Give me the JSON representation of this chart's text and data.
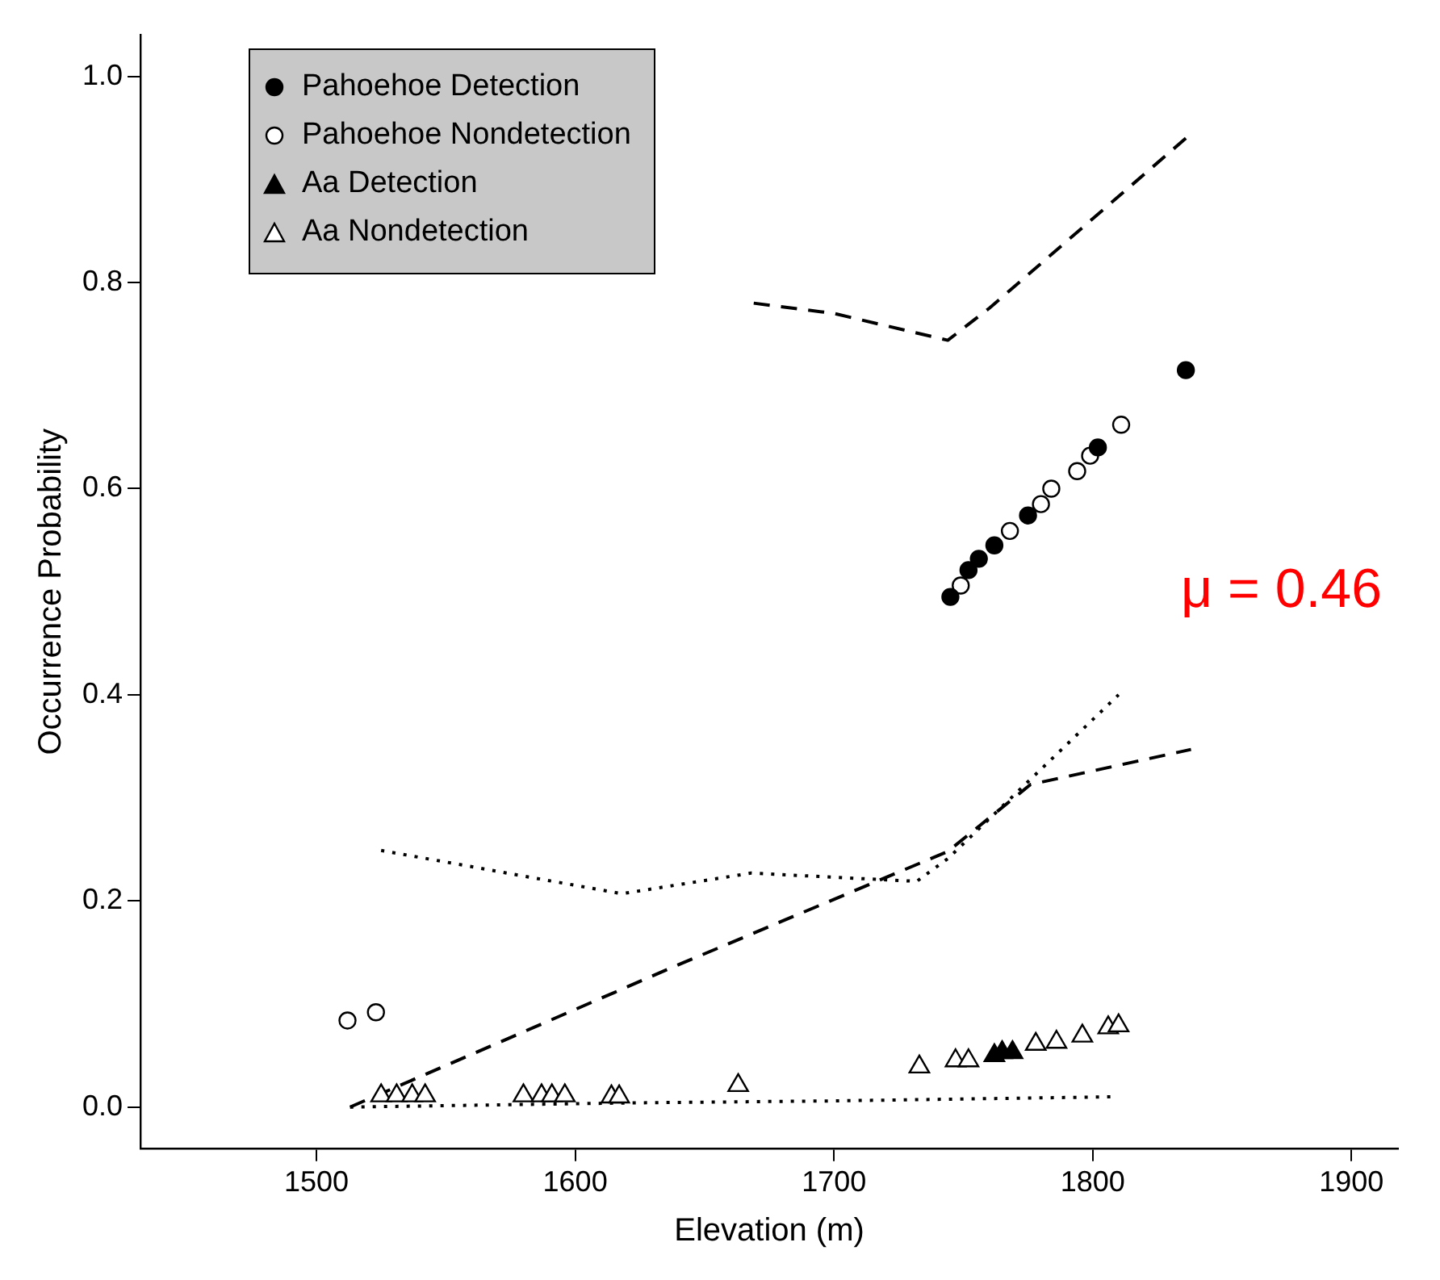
{
  "chart_data": {
    "type": "scatter",
    "xlabel": "Elevation (m)",
    "ylabel": "Occurrence Probability",
    "xlim": [
      1432,
      1918
    ],
    "ylim": [
      -0.04,
      1.04
    ],
    "xticks": [
      1500,
      1600,
      1700,
      1800,
      1900
    ],
    "yticks": [
      {
        "value": 0,
        "label": "0.0"
      },
      0.2,
      0.4,
      0.6,
      0.8,
      {
        "value": 1,
        "label": "1.0"
      }
    ],
    "grid": false,
    "legend": "top left",
    "annotations": [
      "μ = 0.46"
    ],
    "series": [
      {
        "name": "Pahoehoe Detection",
        "color": "#000000",
        "marker": "circle",
        "x": [
          1836,
          1802,
          1775,
          1762,
          1756,
          1752,
          1745
        ],
        "values": [
          0.715,
          0.64,
          0.574,
          0.545,
          0.532,
          0.521,
          0.495
        ]
      },
      {
        "name": "Pahoehoe Nondetection",
        "color": "#ffffff",
        "marker": "circle",
        "x": [
          1811,
          1799,
          1794,
          1784,
          1780,
          1768,
          1749,
          1512,
          1523
        ],
        "values": [
          0.662,
          0.632,
          0.617,
          0.6,
          0.585,
          0.559,
          0.506,
          0.084,
          0.092
        ]
      },
      {
        "name": "Aa Detection",
        "color": "#000000",
        "marker": "triangle",
        "x": [
          1762,
          1765,
          1769
        ],
        "values": [
          0.05,
          0.053,
          0.053
        ]
      },
      {
        "name": "Aa Nondetection",
        "color": "#ffffff",
        "marker": "triangle",
        "x": [
          1525,
          1531,
          1537,
          1542,
          1580,
          1587,
          1591,
          1596,
          1614,
          1617,
          1663,
          1733,
          1747,
          1752,
          1778,
          1786,
          1796,
          1806,
          1810
        ],
        "values": [
          0.011,
          0.011,
          0.011,
          0.011,
          0.011,
          0.011,
          0.011,
          0.011,
          0.01,
          0.01,
          0.021,
          0.039,
          0.045,
          0.045,
          0.061,
          0.063,
          0.069,
          0.077,
          0.079
        ]
      },
      {
        "type": "line",
        "color": "#000000",
        "line_style": "dashed",
        "marker": "none",
        "x": [
          1669,
          1700,
          1744,
          1760,
          1836
        ],
        "values": [
          0.78,
          0.77,
          0.744,
          0.775,
          0.94
        ]
      },
      {
        "type": "line",
        "color": "#000000",
        "line_style": "dashed",
        "marker": "none",
        "x": [
          1513,
          1637,
          1744,
          1776,
          1838
        ],
        "values": [
          0.0,
          0.135,
          0.248,
          0.313,
          0.347
        ]
      },
      {
        "type": "line",
        "color": "#000000",
        "line_style": "dotted",
        "marker": "none",
        "x": [
          1525,
          1618,
          1668,
          1732,
          1744,
          1810
        ],
        "values": [
          0.249,
          0.207,
          0.227,
          0.219,
          0.241,
          0.4
        ]
      },
      {
        "type": "line",
        "color": "#000000",
        "line_style": "dotted",
        "marker": "none",
        "x": [
          1513,
          1620,
          1700,
          1809
        ],
        "values": [
          0.0,
          0.004,
          0.006,
          0.01
        ]
      }
    ]
  }
}
